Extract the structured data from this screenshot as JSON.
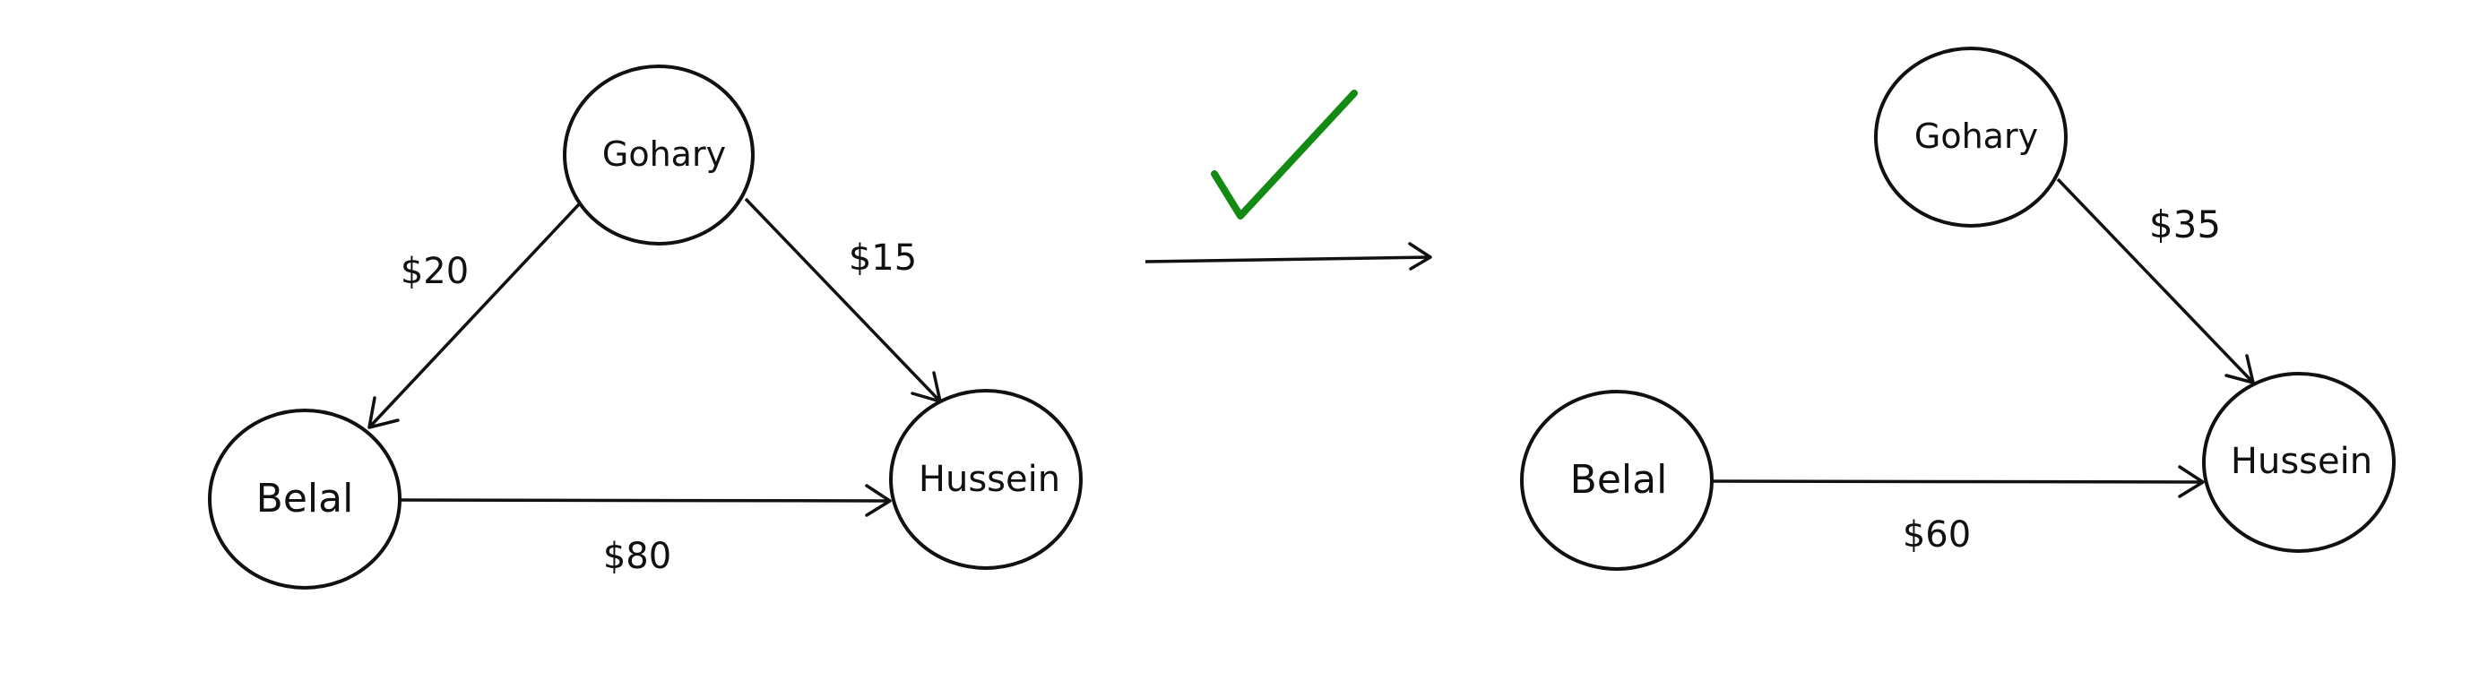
{
  "before_graph": {
    "nodes": {
      "gohary": "Gohary",
      "belal": "Belal",
      "hussein": "Hussein"
    },
    "edges": {
      "gohary_to_belal": "$20",
      "gohary_to_hussein": "$15",
      "belal_to_hussein": "$80"
    }
  },
  "after_graph": {
    "nodes": {
      "gohary": "Gohary",
      "belal": "Belal",
      "hussein": "Hussein"
    },
    "edges": {
      "gohary_to_hussein": "$35",
      "belal_to_hussein": "$60"
    }
  },
  "colors": {
    "checkmark": "#138a13",
    "stroke": "#111111"
  },
  "icons": {
    "checkmark": "checkmark-icon",
    "transform_arrow": "right-arrow-icon"
  }
}
